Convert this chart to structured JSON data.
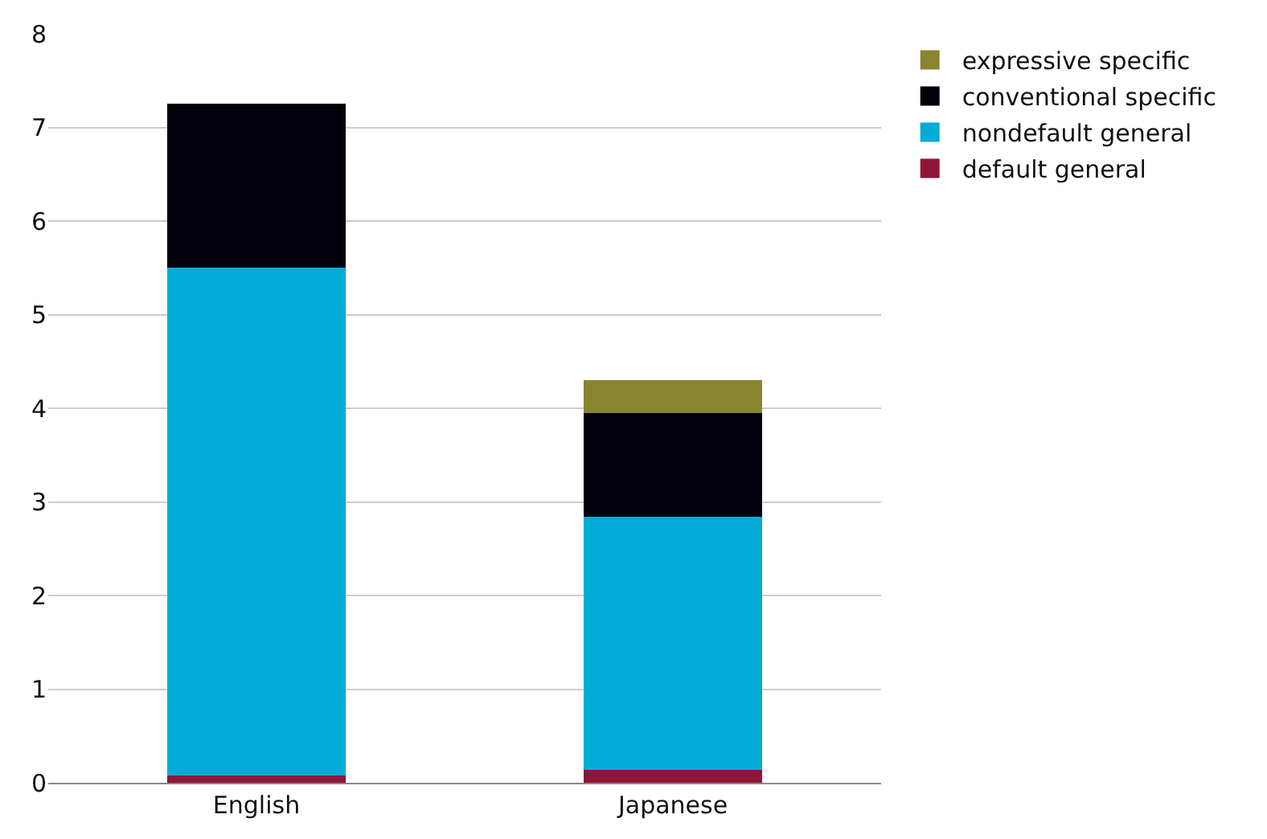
{
  "chart_data": {
    "type": "bar",
    "stacked": true,
    "categories": [
      "English",
      "Japanese"
    ],
    "series": [
      {
        "name": "default general",
        "color": "#8e1538",
        "values": [
          0.08,
          0.14
        ]
      },
      {
        "name": "nondefault general",
        "color": "#00acd6",
        "values": [
          5.42,
          2.7
        ]
      },
      {
        "name": "conventional specific",
        "color": "#02000a",
        "values": [
          1.75,
          1.11
        ]
      },
      {
        "name": "expressive specific",
        "color": "#8a8431",
        "values": [
          0,
          0.35
        ]
      }
    ],
    "ylim": [
      0,
      8
    ],
    "yticks": [
      0,
      1,
      2,
      3,
      4,
      5,
      6,
      7,
      8
    ],
    "grid": "y",
    "legend": "top right"
  }
}
